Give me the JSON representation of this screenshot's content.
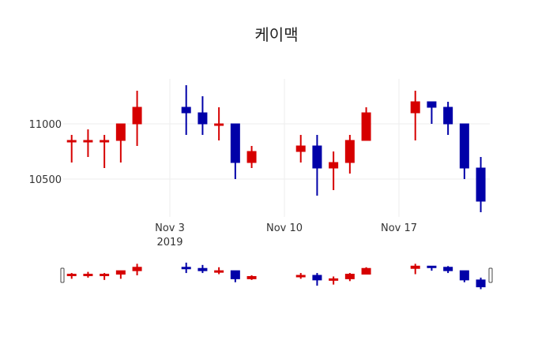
{
  "chart_data": {
    "type": "candlestick",
    "title": "케이맥",
    "xlabel": "",
    "ylabel": "",
    "ylim": [
      10150,
      11450
    ],
    "y_ticks": [
      10500,
      11000
    ],
    "x_ticks": [
      {
        "date": "2019-11-03",
        "label": "Nov 3",
        "sublabel": "2019"
      },
      {
        "date": "2019-11-10",
        "label": "Nov 10",
        "sublabel": ""
      },
      {
        "date": "2019-11-17",
        "label": "Nov 17",
        "sublabel": ""
      }
    ],
    "grid": true,
    "range_slider": true,
    "increasing_color": "#d60000",
    "decreasing_color": "#0000a8",
    "candles": [
      {
        "date": "2019-10-28",
        "open": 10850,
        "high": 10900,
        "low": 10650,
        "close": 10850
      },
      {
        "date": "2019-10-29",
        "open": 10850,
        "high": 10950,
        "low": 10700,
        "close": 10850
      },
      {
        "date": "2019-10-30",
        "open": 10850,
        "high": 10900,
        "low": 10600,
        "close": 10850
      },
      {
        "date": "2019-10-31",
        "open": 10850,
        "high": 11000,
        "low": 10650,
        "close": 11000
      },
      {
        "date": "2019-11-01",
        "open": 11000,
        "high": 11300,
        "low": 10800,
        "close": 11150
      },
      {
        "date": "2019-11-04",
        "open": 11150,
        "high": 11350,
        "low": 10900,
        "close": 11100
      },
      {
        "date": "2019-11-05",
        "open": 11100,
        "high": 11250,
        "low": 10900,
        "close": 11000
      },
      {
        "date": "2019-11-06",
        "open": 11000,
        "high": 11150,
        "low": 10850,
        "close": 11000
      },
      {
        "date": "2019-11-07",
        "open": 11000,
        "high": 11000,
        "low": 10500,
        "close": 10650
      },
      {
        "date": "2019-11-08",
        "open": 10650,
        "high": 10800,
        "low": 10600,
        "close": 10750
      },
      {
        "date": "2019-11-11",
        "open": 10750,
        "high": 10900,
        "low": 10650,
        "close": 10800
      },
      {
        "date": "2019-11-12",
        "open": 10800,
        "high": 10900,
        "low": 10350,
        "close": 10600
      },
      {
        "date": "2019-11-13",
        "open": 10600,
        "high": 10750,
        "low": 10400,
        "close": 10650
      },
      {
        "date": "2019-11-14",
        "open": 10650,
        "high": 10900,
        "low": 10550,
        "close": 10850
      },
      {
        "date": "2019-11-15",
        "open": 10850,
        "high": 11150,
        "low": 10850,
        "close": 11100
      },
      {
        "date": "2019-11-18",
        "open": 11100,
        "high": 11300,
        "low": 10850,
        "close": 11200
      },
      {
        "date": "2019-11-19",
        "open": 11200,
        "high": 11200,
        "low": 11000,
        "close": 11150
      },
      {
        "date": "2019-11-20",
        "open": 11150,
        "high": 11200,
        "low": 10900,
        "close": 11000
      },
      {
        "date": "2019-11-21",
        "open": 11000,
        "high": 11000,
        "low": 10500,
        "close": 10600
      },
      {
        "date": "2019-11-22",
        "open": 10600,
        "high": 10700,
        "low": 10200,
        "close": 10300
      }
    ]
  }
}
